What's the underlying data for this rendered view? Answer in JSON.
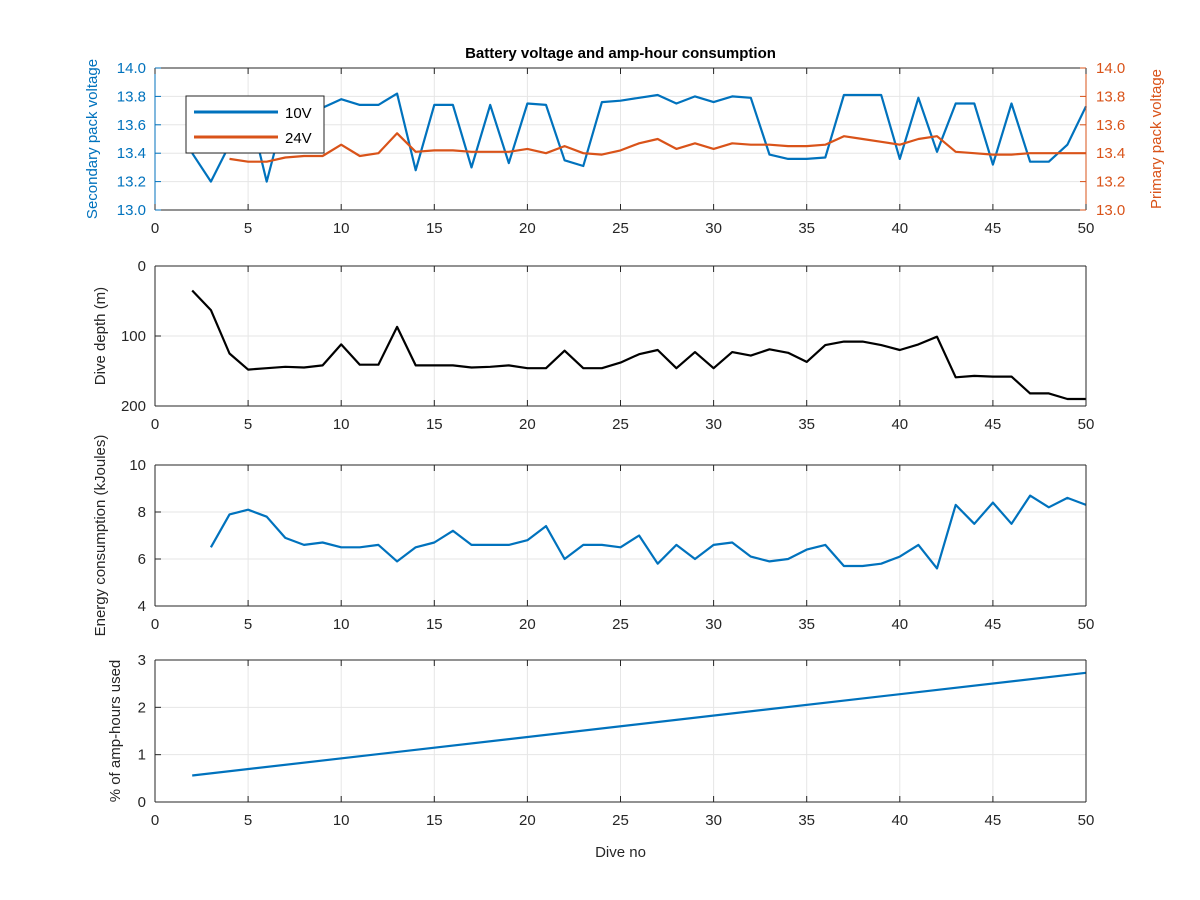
{
  "colors": {
    "blue": "#0072BD",
    "orange": "#D95319",
    "black": "#000000",
    "grid": "#e6e6e6",
    "axis": "#262626"
  },
  "chart_data": [
    {
      "type": "line",
      "title": "Battery voltage and amp-hour consumption",
      "xlabel": "",
      "ylabel": "Secondary pack voltage",
      "y2label": "Primary pack voltage",
      "xlim": [
        0,
        50
      ],
      "ylim": [
        13,
        14
      ],
      "y2lim": [
        13,
        14
      ],
      "xticks": [
        0,
        5,
        10,
        15,
        20,
        25,
        30,
        35,
        40,
        45,
        50
      ],
      "yticks": [
        13,
        13.2,
        13.4,
        13.6,
        13.8,
        14
      ],
      "y2ticks": [
        13,
        13.2,
        13.4,
        13.6,
        13.8,
        14
      ],
      "grid": true,
      "legend": "top-left",
      "series": [
        {
          "name": "10V",
          "axis": "left",
          "color": "#0072BD",
          "x": [
            2,
            3,
            4,
            5,
            6,
            7,
            8,
            9,
            10,
            11,
            12,
            13,
            14,
            15,
            16,
            17,
            18,
            19,
            20,
            21,
            22,
            23,
            24,
            25,
            26,
            27,
            28,
            29,
            30,
            31,
            32,
            33,
            34,
            35,
            36,
            37,
            38,
            39,
            40,
            41,
            42,
            43,
            44,
            45,
            46,
            47,
            48,
            49,
            50
          ],
          "y": [
            13.4,
            13.2,
            13.46,
            13.74,
            13.2,
            13.7,
            13.72,
            13.72,
            13.78,
            13.74,
            13.74,
            13.82,
            13.28,
            13.74,
            13.74,
            13.3,
            13.74,
            13.33,
            13.75,
            13.74,
            13.35,
            13.31,
            13.76,
            13.77,
            13.79,
            13.81,
            13.75,
            13.8,
            13.76,
            13.8,
            13.79,
            13.39,
            13.36,
            13.36,
            13.37,
            13.81,
            13.81,
            13.81,
            13.36,
            13.79,
            13.41,
            13.75,
            13.75,
            13.32,
            13.75,
            13.34,
            13.34,
            13.46,
            13.73
          ]
        },
        {
          "name": "24V",
          "axis": "right",
          "color": "#D95319",
          "x": [
            4,
            5,
            6,
            7,
            8,
            9,
            10,
            11,
            12,
            13,
            14,
            15,
            16,
            17,
            18,
            19,
            20,
            21,
            22,
            23,
            24,
            25,
            26,
            27,
            28,
            29,
            30,
            31,
            32,
            33,
            34,
            35,
            36,
            37,
            38,
            39,
            40,
            41,
            42,
            43,
            44,
            45,
            46,
            47,
            48,
            49,
            50
          ],
          "y": [
            13.36,
            13.34,
            13.34,
            13.37,
            13.38,
            13.38,
            13.46,
            13.38,
            13.4,
            13.54,
            13.41,
            13.42,
            13.42,
            13.41,
            13.41,
            13.41,
            13.43,
            13.4,
            13.45,
            13.4,
            13.39,
            13.42,
            13.47,
            13.5,
            13.43,
            13.47,
            13.43,
            13.47,
            13.46,
            13.46,
            13.45,
            13.45,
            13.46,
            13.52,
            13.5,
            13.48,
            13.46,
            13.5,
            13.52,
            13.41,
            13.4,
            13.39,
            13.39,
            13.4,
            13.4,
            13.4,
            13.4
          ]
        }
      ]
    },
    {
      "type": "line",
      "ylabel": "Dive depth (m)",
      "xlim": [
        0,
        50
      ],
      "ylim": [
        0,
        200
      ],
      "y_reversed": true,
      "xticks": [
        0,
        5,
        10,
        15,
        20,
        25,
        30,
        35,
        40,
        45,
        50
      ],
      "yticks": [
        0,
        100,
        200
      ],
      "grid": true,
      "series": [
        {
          "color": "#000000",
          "x": [
            2,
            3,
            4,
            5,
            6,
            7,
            8,
            9,
            10,
            11,
            12,
            13,
            14,
            15,
            16,
            17,
            18,
            19,
            20,
            21,
            22,
            23,
            24,
            25,
            26,
            27,
            28,
            29,
            30,
            31,
            32,
            33,
            34,
            35,
            36,
            37,
            38,
            39,
            40,
            41,
            42,
            43,
            44,
            45,
            46,
            47,
            48,
            49,
            50
          ],
          "y": [
            35,
            63,
            125,
            148,
            146,
            144,
            145,
            142,
            112,
            141,
            141,
            87,
            142,
            142,
            142,
            145,
            144,
            142,
            146,
            146,
            121,
            146,
            146,
            138,
            126,
            120,
            146,
            123,
            146,
            123,
            128,
            119,
            124,
            137,
            113,
            108,
            108,
            113,
            120,
            112,
            101,
            159,
            157,
            158,
            158,
            182,
            182,
            190,
            190
          ]
        }
      ]
    },
    {
      "type": "line",
      "ylabel": "Energy consumption (kJoules)",
      "xlim": [
        0,
        50
      ],
      "ylim": [
        4,
        10
      ],
      "xticks": [
        0,
        5,
        10,
        15,
        20,
        25,
        30,
        35,
        40,
        45,
        50
      ],
      "yticks": [
        4,
        6,
        8,
        10
      ],
      "grid": true,
      "series": [
        {
          "color": "#0072BD",
          "x": [
            3,
            4,
            5,
            6,
            7,
            8,
            9,
            10,
            11,
            12,
            13,
            14,
            15,
            16,
            17,
            18,
            19,
            20,
            21,
            22,
            23,
            24,
            25,
            26,
            27,
            28,
            29,
            30,
            31,
            32,
            33,
            34,
            35,
            36,
            37,
            38,
            39,
            40,
            41,
            42,
            43,
            44,
            45,
            46,
            47,
            48,
            49,
            50
          ],
          "y": [
            6.5,
            7.9,
            8.1,
            7.8,
            6.9,
            6.6,
            6.7,
            6.5,
            6.5,
            6.6,
            5.9,
            6.5,
            6.7,
            7.2,
            6.6,
            6.6,
            6.6,
            6.8,
            7.4,
            6.0,
            6.6,
            6.6,
            6.5,
            7.0,
            5.8,
            6.6,
            6.0,
            6.6,
            6.7,
            6.1,
            5.9,
            6.0,
            6.4,
            6.6,
            5.7,
            5.7,
            5.8,
            6.1,
            6.6,
            5.6,
            8.3,
            7.5,
            8.4,
            7.5,
            8.7,
            8.2,
            8.6,
            8.3
          ]
        }
      ]
    },
    {
      "type": "line",
      "xlabel": "Dive no",
      "ylabel": "% of amp-hours used",
      "xlim": [
        0,
        50
      ],
      "ylim": [
        0,
        3
      ],
      "xticks": [
        0,
        5,
        10,
        15,
        20,
        25,
        30,
        35,
        40,
        45,
        50
      ],
      "yticks": [
        0,
        1,
        2,
        3
      ],
      "grid": true,
      "series": [
        {
          "color": "#0072BD",
          "x": [
            2,
            50
          ],
          "y": [
            0.56,
            2.73
          ]
        }
      ]
    }
  ]
}
